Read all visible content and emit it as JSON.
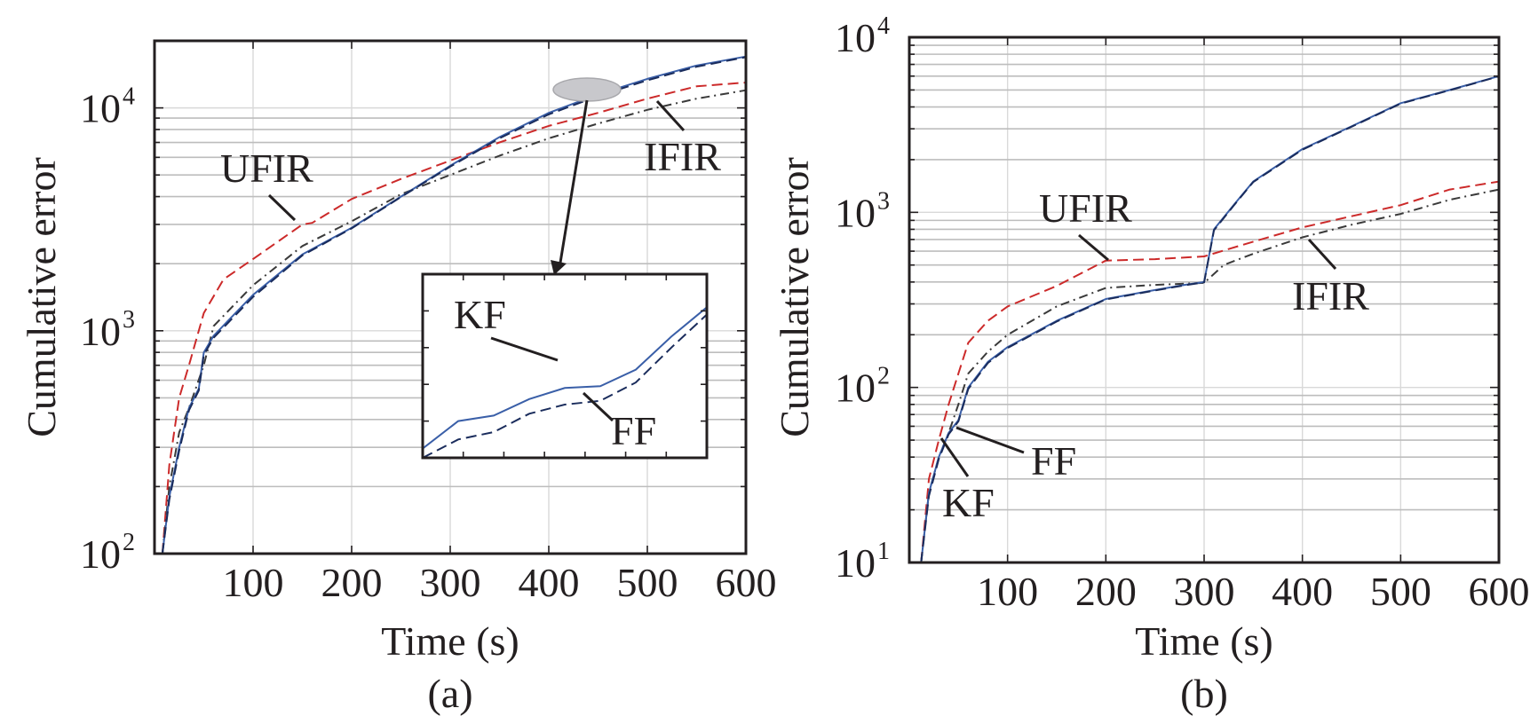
{
  "colors": {
    "kf": "#3a5fa8",
    "ff": "#1a2c5c",
    "ufir": "#cc2a2a",
    "ifir": "#3a3a3a",
    "axis": "#231f20"
  },
  "chart_data": [
    {
      "type": "line",
      "panel_label": "(a)",
      "xlabel": "Time (s)",
      "ylabel": "Cumulative error",
      "xlim": [
        0,
        600
      ],
      "ylim": [
        100,
        20000
      ],
      "yscale": "log",
      "grid": true,
      "x_ticks": [
        "100",
        "200",
        "300",
        "400",
        "500",
        "600"
      ],
      "y_ticks": [
        {
          "value": 100,
          "label": "10",
          "exp": "2"
        },
        {
          "value": 1000,
          "label": "10",
          "exp": "3"
        },
        {
          "value": 10000,
          "label": "10",
          "exp": "4"
        }
      ],
      "series": [
        {
          "name": "UFIR",
          "style": "dashed",
          "color": "#cc2a2a",
          "x": [
            8,
            15,
            25,
            35,
            50,
            70,
            100,
            130,
            150,
            160,
            200,
            250,
            300,
            350,
            400,
            450,
            500,
            550,
            600
          ],
          "y": [
            100,
            250,
            500,
            700,
            1200,
            1700,
            2100,
            2600,
            3000,
            3050,
            3900,
            4800,
            5800,
            7000,
            8300,
            9500,
            11000,
            12500,
            13000
          ]
        },
        {
          "name": "IFIR",
          "style": "dash-dot",
          "color": "#3a3a3a",
          "x": [
            8,
            15,
            25,
            35,
            50,
            60,
            100,
            150,
            200,
            250,
            300,
            350,
            400,
            450,
            500,
            550,
            600
          ],
          "y": [
            100,
            200,
            350,
            450,
            700,
            1050,
            1600,
            2400,
            3100,
            4100,
            5000,
            6100,
            7300,
            8500,
            9800,
            11000,
            12000
          ]
        },
        {
          "name": "KF",
          "style": "solid",
          "color": "#3a5fa8",
          "x": [
            8,
            15,
            25,
            35,
            45,
            50,
            60,
            100,
            150,
            200,
            250,
            300,
            350,
            400,
            450,
            500,
            550,
            600
          ],
          "y": [
            100,
            180,
            300,
            450,
            550,
            800,
            950,
            1450,
            2200,
            2900,
            4000,
            5500,
            7400,
            9500,
            11500,
            13500,
            15500,
            17000
          ]
        },
        {
          "name": "FF",
          "style": "dashed",
          "color": "#1a2c5c",
          "x": [
            8,
            15,
            25,
            35,
            45,
            50,
            60,
            100,
            150,
            200,
            250,
            300,
            350,
            400,
            450,
            500,
            550,
            600
          ],
          "y": [
            100,
            175,
            290,
            440,
            540,
            780,
            930,
            1420,
            2180,
            2880,
            3980,
            5450,
            7300,
            9350,
            11300,
            13300,
            15300,
            16900
          ]
        }
      ],
      "annotations": [
        "UFIR",
        "IFIR"
      ],
      "inset": {
        "labels": [
          "KF",
          "FF"
        ],
        "series": [
          {
            "name": "KF",
            "y": [
              0.05,
              0.2,
              0.23,
              0.32,
              0.38,
              0.39,
              0.48,
              0.66,
              0.82
            ]
          },
          {
            "name": "FF",
            "y": [
              -0.05,
              0.1,
              0.14,
              0.24,
              0.29,
              0.31,
              0.41,
              0.6,
              0.78
            ]
          }
        ]
      }
    },
    {
      "type": "line",
      "panel_label": "(b)",
      "xlabel": "Time (s)",
      "ylabel": "Cumulative error",
      "xlim": [
        0,
        600
      ],
      "ylim": [
        10,
        10000
      ],
      "yscale": "log",
      "grid": true,
      "x_ticks": [
        "100",
        "200",
        "300",
        "400",
        "500",
        "600"
      ],
      "y_ticks": [
        {
          "value": 10,
          "label": "10",
          "exp": "1"
        },
        {
          "value": 100,
          "label": "10",
          "exp": "2"
        },
        {
          "value": 1000,
          "label": "10",
          "exp": "3"
        },
        {
          "value": 10000,
          "label": "10",
          "exp": "4"
        }
      ],
      "series": [
        {
          "name": "UFIR",
          "style": "dashed",
          "color": "#cc2a2a",
          "x": [
            12,
            20,
            30,
            40,
            50,
            60,
            80,
            100,
            150,
            200,
            250,
            300,
            350,
            400,
            450,
            500,
            550,
            600
          ],
          "y": [
            10,
            30,
            50,
            80,
            120,
            180,
            240,
            290,
            380,
            530,
            540,
            560,
            680,
            820,
            950,
            1100,
            1350,
            1500
          ]
        },
        {
          "name": "IFIR",
          "style": "dash-dot",
          "color": "#3a3a3a",
          "x": [
            12,
            20,
            30,
            40,
            50,
            60,
            80,
            100,
            150,
            200,
            250,
            300,
            320,
            350,
            400,
            450,
            500,
            550,
            600
          ],
          "y": [
            10,
            25,
            40,
            55,
            80,
            120,
            160,
            200,
            290,
            370,
            385,
            395,
            500,
            580,
            720,
            850,
            980,
            1180,
            1350
          ]
        },
        {
          "name": "KF",
          "style": "solid",
          "color": "#3a5fa8",
          "x": [
            12,
            20,
            30,
            40,
            50,
            60,
            80,
            100,
            150,
            200,
            250,
            280,
            300,
            310,
            330,
            350,
            400,
            450,
            500,
            550,
            600
          ],
          "y": [
            10,
            25,
            40,
            55,
            65,
            100,
            140,
            170,
            240,
            320,
            360,
            385,
            400,
            800,
            1100,
            1500,
            2300,
            3100,
            4200,
            5000,
            6000
          ]
        },
        {
          "name": "FF",
          "style": "dashed",
          "color": "#1a2c5c",
          "x": [
            12,
            20,
            30,
            40,
            50,
            60,
            80,
            100,
            150,
            200,
            250,
            280,
            300,
            310,
            330,
            350,
            400,
            450,
            500,
            550,
            600
          ],
          "y": [
            10,
            24,
            39,
            54,
            64,
            98,
            138,
            168,
            238,
            318,
            358,
            383,
            398,
            790,
            1090,
            1490,
            2280,
            3080,
            4180,
            4980,
            5980
          ]
        }
      ],
      "annotations": [
        "UFIR",
        "IFIR",
        "FF",
        "KF"
      ]
    }
  ]
}
